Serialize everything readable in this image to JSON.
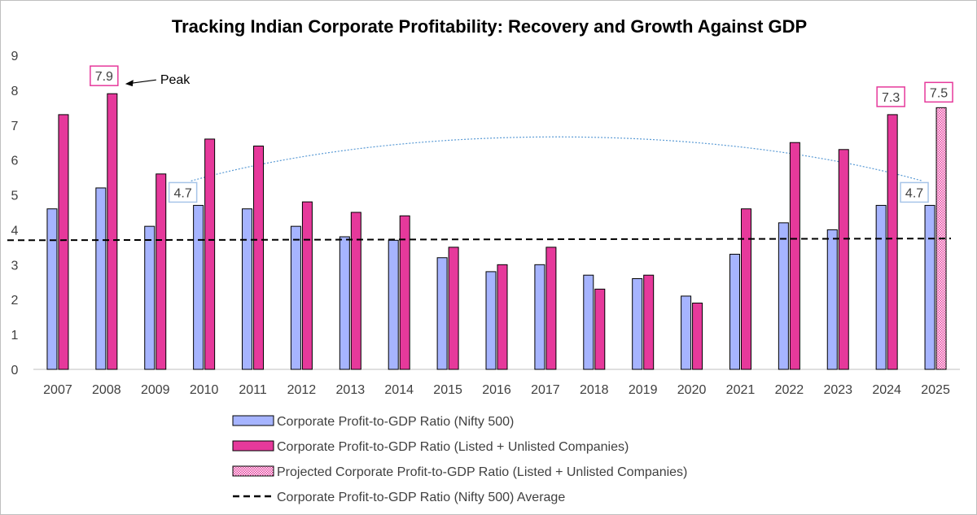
{
  "chart_data": {
    "type": "bar",
    "title": "Tracking Indian Corporate Profitability: Recovery and Growth Against GDP",
    "categories": [
      "2007",
      "2008",
      "2009",
      "2010",
      "2011",
      "2012",
      "2013",
      "2014",
      "2015",
      "2016",
      "2017",
      "2018",
      "2019",
      "2020",
      "2021",
      "2022",
      "2023",
      "2024",
      "2025"
    ],
    "series": [
      {
        "name": "Corporate Profit-to-GDP Ratio (Nifty 500)",
        "color": "#a6b4ff",
        "values": [
          4.6,
          5.2,
          4.1,
          4.7,
          4.6,
          4.1,
          3.8,
          3.7,
          3.2,
          2.8,
          3.0,
          2.7,
          2.6,
          2.1,
          3.3,
          4.2,
          4.0,
          4.7,
          4.7
        ]
      },
      {
        "name": "Corporate Profit-to-GDP Ratio (Listed + Unlisted Companies)",
        "color": "#e6399b",
        "values": [
          7.3,
          7.9,
          5.6,
          6.6,
          6.4,
          4.8,
          4.5,
          4.4,
          3.5,
          3.0,
          3.5,
          2.3,
          2.7,
          1.9,
          4.6,
          6.5,
          6.3,
          7.3,
          null
        ]
      },
      {
        "name": "Projected Corporate Profit-to-GDP Ratio (Listed + Unlisted Companies)",
        "color": "#e6399b",
        "pattern": "dotted",
        "values": [
          null,
          null,
          null,
          null,
          null,
          null,
          null,
          null,
          null,
          null,
          null,
          null,
          null,
          null,
          null,
          null,
          null,
          null,
          7.5
        ]
      }
    ],
    "average_line": {
      "name": "Corporate Profit-to-GDP Ratio (Nifty 500) Average",
      "start_value": 3.7,
      "end_value": 3.75,
      "style": "dashed"
    },
    "annotations": [
      {
        "text": "7.9",
        "category": "2008",
        "target": "Listed + Unlisted",
        "box_color": "#e6399b"
      },
      {
        "text": "Peak",
        "category": "2008",
        "arrow": true
      },
      {
        "text": "4.7",
        "category": "2010",
        "target": "Nifty 500",
        "box_color": "#a6c4e8"
      },
      {
        "text": "4.7",
        "category": "2025",
        "target": "Nifty 500",
        "box_color": "#a6c4e8"
      },
      {
        "text": "7.3",
        "category": "2024",
        "target": "Listed + Unlisted",
        "box_color": "#e6399b"
      },
      {
        "text": "7.5",
        "category": "2025",
        "target": "Projected",
        "box_color": "#e6399b"
      }
    ],
    "connector_arc": {
      "from": "2010",
      "to": "2025",
      "style": "dotted",
      "color": "#5b9bd5"
    },
    "ylim": [
      0,
      9
    ],
    "yticks": [
      0,
      1,
      2,
      3,
      4,
      5,
      6,
      7,
      8,
      9
    ],
    "grid": false,
    "legend_position": "bottom"
  }
}
